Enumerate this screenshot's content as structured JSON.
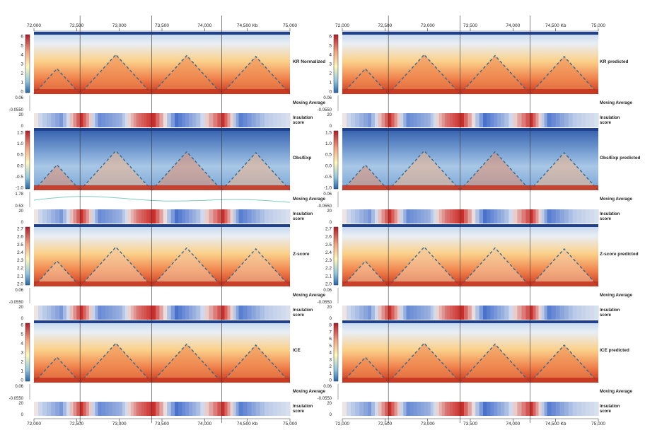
{
  "figure": {
    "panels": [
      {
        "side": "left",
        "title": "KR Normalized",
        "cbar_ticks": [
          "6",
          "5",
          "4",
          "3",
          "2",
          "1",
          "0"
        ],
        "ins_ticks": [
          "20",
          "0"
        ],
        "ma_ticks": [
          "0.06",
          "-0.0550"
        ]
      },
      {
        "side": "left",
        "title": "Obs/Exp",
        "cbar_ticks": [
          "1.5",
          "1.0",
          "0.5",
          "0.0",
          "-0.5",
          "-1.0"
        ],
        "ins_ticks": [
          "20",
          "0"
        ],
        "ma_ticks": [
          "1.78",
          "0.53"
        ]
      },
      {
        "side": "left",
        "title": "Z-score",
        "cbar_ticks": [
          "2.7",
          "2.6",
          "2.5",
          "2.4",
          "2.3",
          "2.2",
          "2.1",
          "2.0"
        ],
        "ins_ticks": [
          "20",
          "0"
        ],
        "ma_ticks": [
          "0.06",
          "-0.0550"
        ]
      },
      {
        "side": "left",
        "title": "ICE",
        "cbar_ticks": [
          "6",
          "5",
          "4",
          "3",
          "2",
          "1",
          "0"
        ],
        "ins_ticks": [
          "20",
          "0"
        ],
        "ma_ticks": [
          "0.06",
          "-0.0550"
        ]
      },
      {
        "side": "right",
        "title": "KR predicted",
        "cbar_ticks": [
          "6",
          "5",
          "4",
          "3",
          "2",
          "1",
          "0"
        ],
        "ins_ticks": [
          "20",
          "0"
        ],
        "ma_ticks": [
          "0.06",
          "-0.0550"
        ]
      },
      {
        "side": "right",
        "title": "Obs/Exp predicted",
        "cbar_ticks": [
          "1.5",
          "1.0",
          "0.5",
          "0.0",
          "-0.5",
          "-1.0"
        ],
        "ins_ticks": [
          "20",
          "0"
        ],
        "ma_ticks": [
          "0.06",
          "-0.0550"
        ]
      },
      {
        "side": "right",
        "title": "Z-score predicted",
        "cbar_ticks": [
          "2.7",
          "2.6",
          "2.5",
          "2.4",
          "2.3",
          "2.2",
          "2.1",
          "2.0"
        ],
        "ins_ticks": [
          "20",
          "0"
        ],
        "ma_ticks": [
          "0.06",
          "-0.0550"
        ]
      },
      {
        "side": "right",
        "title": "ICE predicted",
        "cbar_ticks": [
          "8",
          "7",
          "6",
          "5",
          "4",
          "3",
          "2",
          "1",
          "0"
        ],
        "ins_ticks": [
          "20",
          "0"
        ],
        "ma_ticks": [
          "0.06",
          "-0.0550"
        ]
      }
    ],
    "track_labels": {
      "moving_average": "Moving Average",
      "insulation_1": "Insulation",
      "insulation_2": "score"
    },
    "genome_ticks": [
      "72,000",
      "72,500",
      "73,000",
      "73,500",
      "74,000",
      "74,500 Kb",
      "75,000"
    ],
    "colors": {
      "red": "#b2182b",
      "orange": "#f4a582",
      "yellow": "#fde9a8",
      "light_blue": "#c6dbef",
      "blue": "#2a5caa",
      "dark_blue": "#1f3f8f",
      "line_green": "#7fcdbb",
      "dash": "#2f6b94"
    }
  },
  "chart_data": {
    "type": "heatmap",
    "x_unit": "Kb",
    "x_range": [
      72000,
      75000
    ],
    "x_ticks": [
      72000,
      72500,
      73000,
      73500,
      74000,
      74500,
      75000
    ],
    "tad_boundaries_kb": [
      72000,
      72540,
      73380,
      74200,
      75000
    ],
    "tad_domains_kb": [
      [
        72000,
        72540
      ],
      [
        72540,
        73380
      ],
      [
        73380,
        74200
      ],
      [
        74200,
        75000
      ]
    ],
    "insulation_profile": [
      {
        "kb": 72000,
        "v": 0.0
      },
      {
        "kb": 72300,
        "v": -0.6
      },
      {
        "kb": 72540,
        "v": 1.0
      },
      {
        "kb": 72750,
        "v": -0.7
      },
      {
        "kb": 73000,
        "v": -0.4
      },
      {
        "kb": 73200,
        "v": 0.6
      },
      {
        "kb": 73380,
        "v": 1.0
      },
      {
        "kb": 73650,
        "v": -0.9
      },
      {
        "kb": 73900,
        "v": -0.3
      },
      {
        "kb": 74200,
        "v": 1.0
      },
      {
        "kb": 74400,
        "v": -0.8
      },
      {
        "kb": 74700,
        "v": -0.2
      },
      {
        "kb": 75000,
        "v": 0.0
      }
    ],
    "series": [
      {
        "name": "KR Normalized",
        "cbar_range": [
          0,
          6
        ]
      },
      {
        "name": "Obs/Exp",
        "cbar_range": [
          -1.0,
          1.5
        ]
      },
      {
        "name": "Z-score",
        "cbar_range": [
          2.0,
          2.7
        ]
      },
      {
        "name": "ICE",
        "cbar_range": [
          0,
          6
        ]
      },
      {
        "name": "KR predicted",
        "cbar_range": [
          0,
          6
        ]
      },
      {
        "name": "Obs/Exp predicted",
        "cbar_range": [
          -1.0,
          1.5
        ]
      },
      {
        "name": "Z-score predicted",
        "cbar_range": [
          2.0,
          2.7
        ]
      },
      {
        "name": "ICE predicted",
        "cbar_range": [
          0,
          8
        ]
      }
    ]
  }
}
